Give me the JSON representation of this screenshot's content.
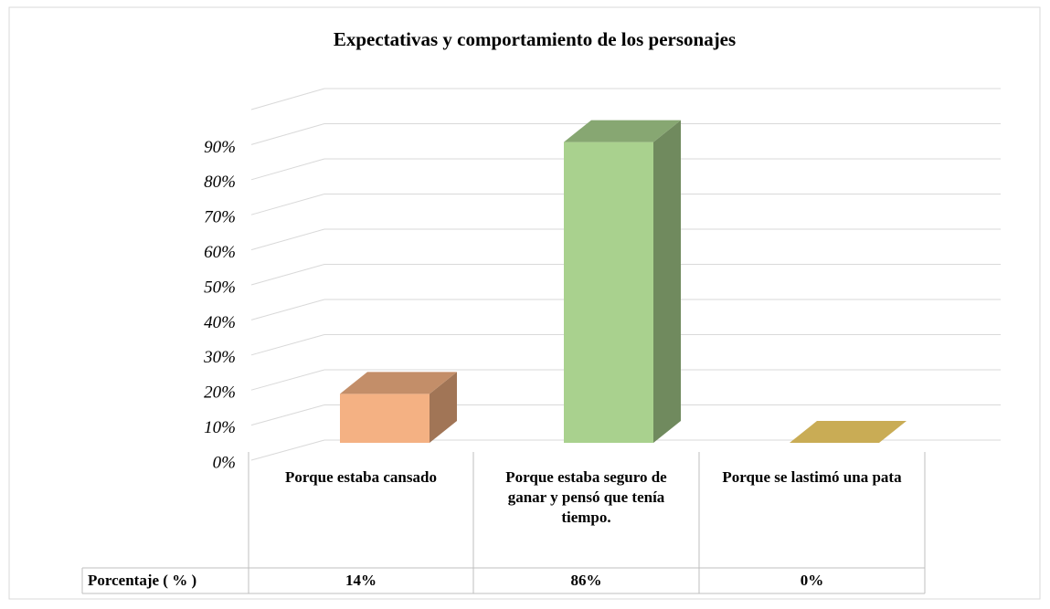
{
  "chart_data": {
    "type": "bar3d",
    "title": "Expectativas y comportamiento de los personajes",
    "categories": [
      "Porque estaba cansado",
      "Porque estaba seguro de ganar y pensó que tenía tiempo.",
      "Porque se lastimó una pata"
    ],
    "series": [
      {
        "name": "Porcentaje ( % )",
        "values": [
          14,
          86,
          0
        ],
        "value_labels": [
          "14%",
          "86%",
          "0%"
        ]
      }
    ],
    "colors": [
      "#f4b183",
      "#a9d18e",
      "#c9ac55"
    ],
    "ylim": [
      0,
      100
    ],
    "yticks": [
      {
        "value": 0,
        "label": "0%"
      },
      {
        "value": 10,
        "label": "10%"
      },
      {
        "value": 20,
        "label": "20%"
      },
      {
        "value": 30,
        "label": "30%"
      },
      {
        "value": 40,
        "label": "40%"
      },
      {
        "value": 50,
        "label": "50%"
      },
      {
        "value": 60,
        "label": "60%"
      },
      {
        "value": 70,
        "label": "70%"
      },
      {
        "value": 80,
        "label": "80%"
      },
      {
        "value": 90,
        "label": "90%"
      }
    ],
    "grid": true
  }
}
